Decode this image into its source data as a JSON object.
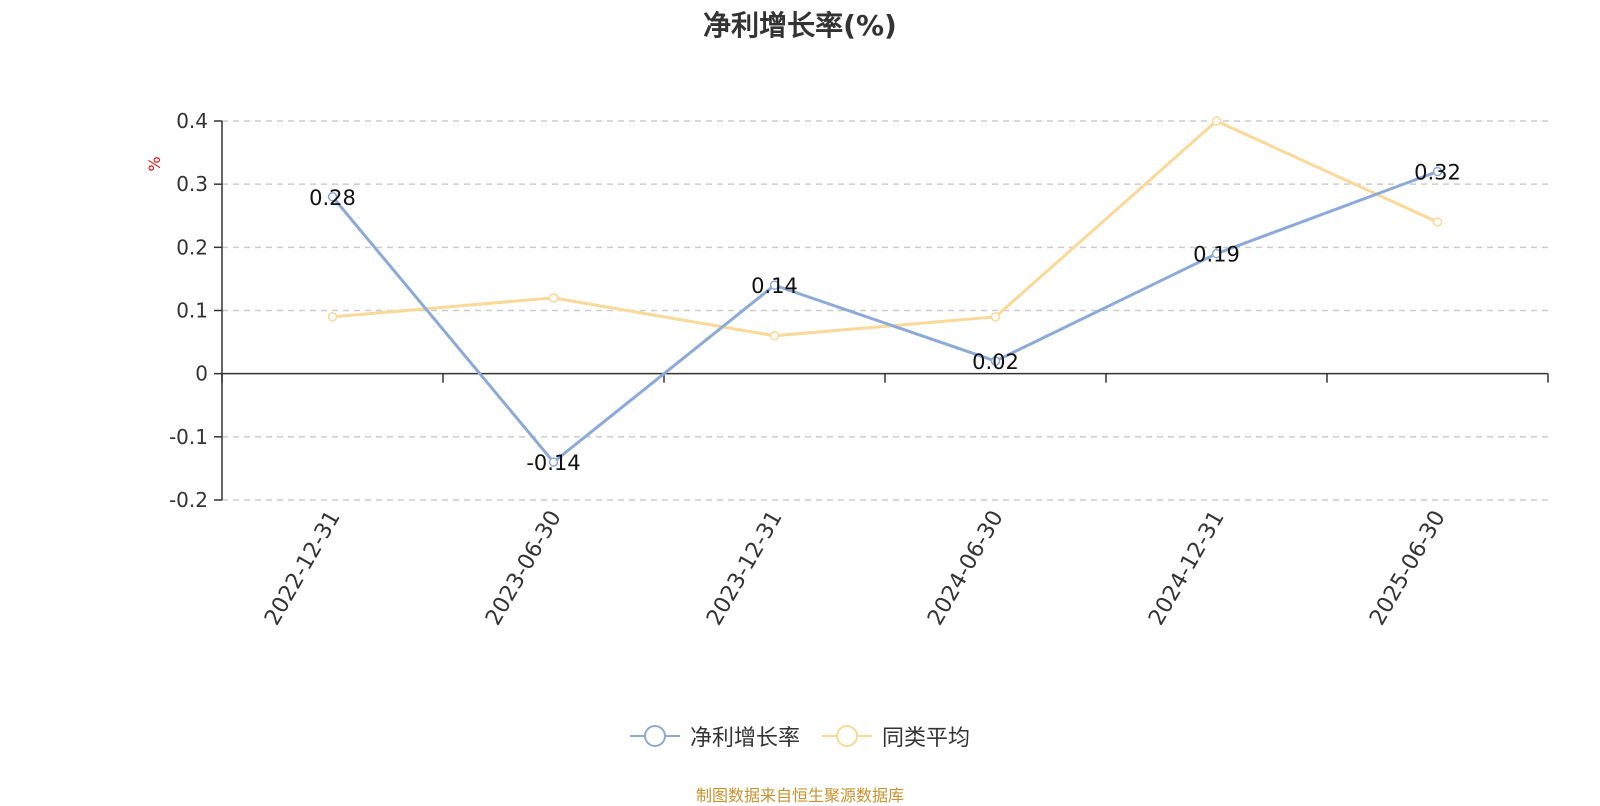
{
  "colors": {
    "series_primary": "#8caad8",
    "series_secondary": "#fad898",
    "axis": "#333333",
    "grid": "#cccccc",
    "unit_label": "#e01010",
    "source_text": "#c8922e"
  },
  "chart_data": {
    "type": "line",
    "title": "净利增长率(%)",
    "ylabel": "%",
    "xlabel": "",
    "categories": [
      "2022-12-31",
      "2023-06-30",
      "2023-12-31",
      "2024-06-30",
      "2024-12-31",
      "2025-06-30"
    ],
    "series": [
      {
        "name": "净利增长率",
        "values": [
          0.28,
          -0.14,
          0.14,
          0.02,
          0.19,
          0.32
        ],
        "data_labels": [
          "0.28",
          "-0.14",
          "0.14",
          "0.02",
          "0.19",
          "0.32"
        ]
      },
      {
        "name": "同类平均",
        "values": [
          0.09,
          0.12,
          0.06,
          0.09,
          0.4,
          0.24
        ],
        "data_labels": []
      }
    ],
    "ylim": [
      -0.2,
      0.4
    ],
    "yticks": [
      0.4,
      0.3,
      0.2,
      0.1,
      0,
      -0.1,
      -0.2
    ],
    "ytick_labels": [
      "0.4",
      "0.3",
      "0.2",
      "0.1",
      "0",
      "-0.1",
      "-0.2"
    ],
    "grid": true,
    "legend_position": "bottom"
  },
  "footer": {
    "source": "制图数据来自恒生聚源数据库"
  }
}
